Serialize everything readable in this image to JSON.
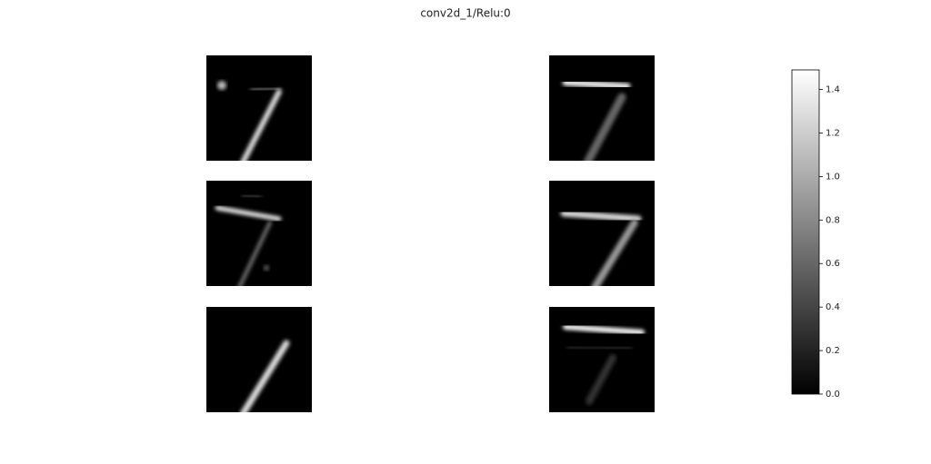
{
  "chart_data": {
    "type": "image",
    "title": "conv2d_1/Relu:0",
    "colormap": [
      "#000000",
      "#ffffff"
    ],
    "ylim": [
      0,
      1.49
    ],
    "yticks": [
      {
        "value": 0,
        "label": "0.0"
      },
      {
        "value": 0.2,
        "label": "0.2"
      },
      {
        "value": 0.4,
        "label": "0.4"
      },
      {
        "value": 0.6,
        "label": "0.6"
      },
      {
        "value": 0.8,
        "label": "0.8"
      },
      {
        "value": 1.0,
        "label": "1.0"
      },
      {
        "value": 1.2,
        "label": "1.2"
      },
      {
        "value": 1.4,
        "label": "1.4"
      }
    ]
  }
}
